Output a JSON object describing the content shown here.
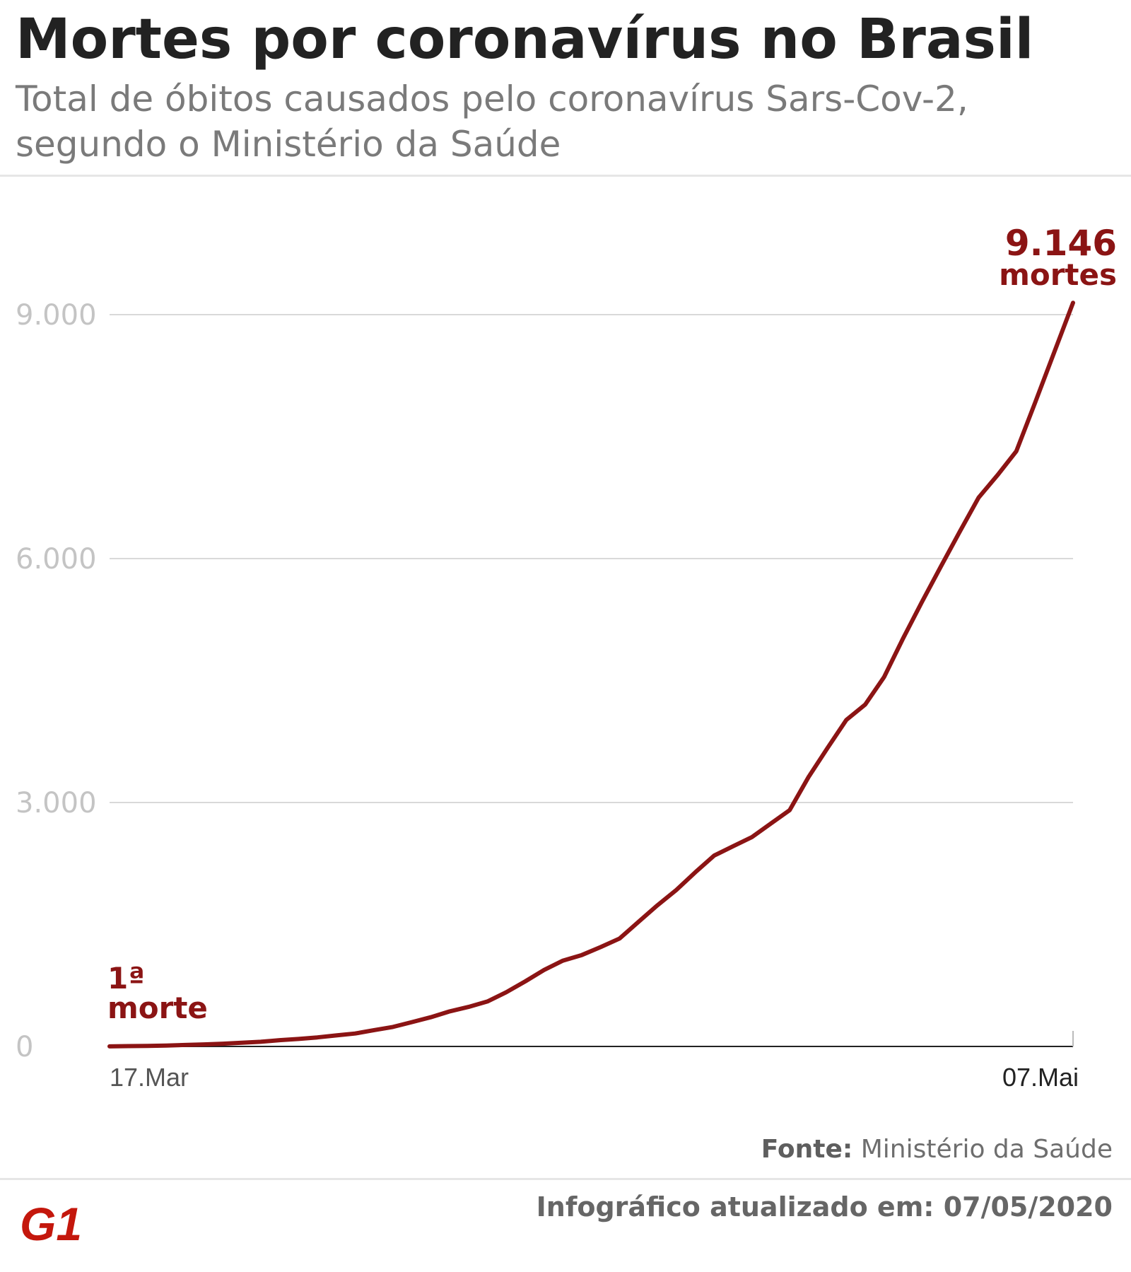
{
  "header": {
    "title": "Mortes por coronavírus no Brasil",
    "subtitle": "Total de óbitos causados pelo coronavírus Sars-Cov-2, segundo o Ministério da Saúde"
  },
  "chart_data": {
    "type": "line",
    "title": "Mortes por coronavírus no Brasil",
    "subtitle": "Total de óbitos causados pelo coronavírus Sars-Cov-2, segundo o Ministério da Saúde",
    "xlabel": "",
    "ylabel": "",
    "x_tick_labels": [
      "17.Mar",
      "07.Mai"
    ],
    "y_ticks": [
      0,
      3000,
      6000,
      9000
    ],
    "y_tick_labels": [
      "0",
      "3.000",
      "6.000",
      "9.000"
    ],
    "ylim": [
      0,
      9146
    ],
    "grid": true,
    "line_color": "#8b1414",
    "series": [
      {
        "x": [
          "2020-03-17",
          "2020-03-18",
          "2020-03-19",
          "2020-03-20",
          "2020-03-21",
          "2020-03-22",
          "2020-03-23",
          "2020-03-24",
          "2020-03-25",
          "2020-03-26",
          "2020-03-27",
          "2020-03-28",
          "2020-03-29",
          "2020-03-30",
          "2020-03-31",
          "2020-04-01",
          "2020-04-02",
          "2020-04-03",
          "2020-04-04",
          "2020-04-05",
          "2020-04-06",
          "2020-04-07",
          "2020-04-08",
          "2020-04-09",
          "2020-04-10",
          "2020-04-11",
          "2020-04-12",
          "2020-04-13",
          "2020-04-14",
          "2020-04-15",
          "2020-04-16",
          "2020-04-17",
          "2020-04-18",
          "2020-04-19",
          "2020-04-20",
          "2020-04-21",
          "2020-04-22",
          "2020-04-23",
          "2020-04-24",
          "2020-04-25",
          "2020-04-26",
          "2020-04-27",
          "2020-04-28",
          "2020-04-29",
          "2020-04-30",
          "2020-05-01",
          "2020-05-02",
          "2020-05-03",
          "2020-05-04",
          "2020-05-05",
          "2020-05-06",
          "2020-05-07"
        ],
        "values": [
          1,
          4,
          7,
          11,
          18,
          25,
          34,
          46,
          57,
          77,
          92,
          111,
          136,
          159,
          201,
          240,
          299,
          359,
          431,
          486,
          553,
          667,
          800,
          941,
          1056,
          1124,
          1223,
          1328,
          1532,
          1736,
          1924,
          2141,
          2347,
          2462,
          2575,
          2741,
          2906,
          3313,
          3670,
          4016,
          4205,
          4543,
          5017,
          5466,
          5901,
          6329,
          6750,
          7025,
          7321,
          7921,
          8536,
          9146
        ]
      }
    ],
    "annotations": [
      {
        "value_label": "1ª",
        "text": "morte",
        "at": "2020-03-17",
        "value": 1
      },
      {
        "value_label": "9.146",
        "text": "mortes",
        "at": "2020-05-07",
        "value": 9146
      }
    ]
  },
  "footer": {
    "source_label": "Fonte:",
    "source_text": " Ministério da Saúde",
    "updated": "Infográfico atualizado em: 07/05/2020",
    "logo_text": "G1",
    "logo_color": "#c4170c"
  }
}
